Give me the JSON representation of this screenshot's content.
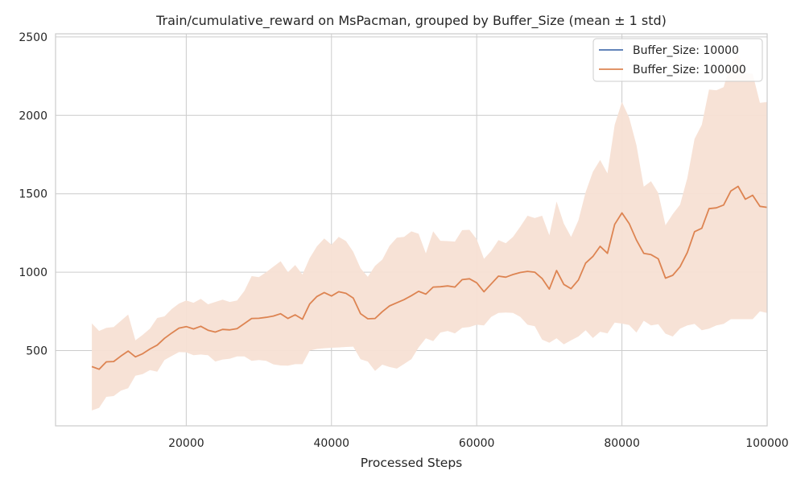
{
  "chart_data": {
    "type": "line",
    "title": "Train/cumulative_reward on MsPacman, grouped by Buffer_Size (mean ± 1 std)",
    "xlabel": "Processed Steps",
    "ylabel": "",
    "xlim": [
      2000,
      100000
    ],
    "ylim": [
      20,
      2520
    ],
    "xticks": [
      20000,
      40000,
      60000,
      80000,
      100000
    ],
    "yticks": [
      500,
      1000,
      1500,
      2000,
      2500
    ],
    "xtick_labels": [
      "20000",
      "40000",
      "60000",
      "80000",
      "100000"
    ],
    "ytick_labels": [
      "500",
      "1000",
      "1500",
      "2000",
      "2500"
    ],
    "grid": true,
    "legend_position": "top-right",
    "series": [
      {
        "name": "Buffer_Size: 10000",
        "color": "#4c72b0",
        "x": [],
        "mean": [],
        "lower": [],
        "upper": []
      },
      {
        "name": "Buffer_Size: 100000",
        "color": "#dd8452",
        "band_color": "#f7e0d4",
        "x": [
          7000,
          8000,
          9000,
          10000,
          11000,
          12000,
          13000,
          14000,
          15000,
          16000,
          17000,
          18000,
          19000,
          20000,
          21000,
          22000,
          23000,
          24000,
          25000,
          26000,
          27000,
          28000,
          29000,
          30000,
          31000,
          32000,
          33000,
          34000,
          35000,
          36000,
          37000,
          38000,
          39000,
          40000,
          41000,
          42000,
          43000,
          44000,
          45000,
          46000,
          47000,
          48000,
          49000,
          50000,
          51000,
          52000,
          53000,
          54000,
          55000,
          56000,
          57000,
          58000,
          59000,
          60000,
          61000,
          62000,
          63000,
          64000,
          65000,
          66000,
          67000,
          68000,
          69000,
          70000,
          71000,
          72000,
          73000,
          74000,
          75000,
          76000,
          77000,
          78000,
          79000,
          80000,
          81000,
          82000,
          83000,
          84000,
          85000,
          86000,
          87000,
          88000,
          89000,
          90000,
          91000,
          92000,
          93000,
          94000,
          95000,
          96000,
          97000,
          98000,
          99000,
          100000
        ],
        "mean": [
          398,
          381,
          428,
          430,
          465,
          497,
          460,
          480,
          510,
          535,
          578,
          612,
          643,
          653,
          638,
          655,
          630,
          618,
          635,
          632,
          640,
          672,
          705,
          706,
          712,
          720,
          735,
          705,
          728,
          700,
          797,
          845,
          870,
          848,
          875,
          865,
          835,
          735,
          703,
          705,
          748,
          785,
          805,
          825,
          850,
          878,
          860,
          905,
          907,
          912,
          905,
          952,
          958,
          932,
          875,
          925,
          975,
          968,
          985,
          998,
          1005,
          1000,
          960,
          892,
          1010,
          922,
          895,
          950,
          1058,
          1100,
          1165,
          1120,
          1305,
          1378,
          1310,
          1205,
          1120,
          1112,
          1085,
          962,
          980,
          1035,
          1125,
          1258,
          1280,
          1405,
          1410,
          1428,
          1518,
          1547,
          1465,
          1490,
          1420,
          1413
        ],
        "lower": [
          118,
          135,
          205,
          210,
          245,
          260,
          340,
          350,
          375,
          365,
          440,
          465,
          490,
          488,
          470,
          475,
          470,
          430,
          443,
          448,
          463,
          463,
          435,
          440,
          435,
          412,
          405,
          404,
          413,
          413,
          500,
          510,
          515,
          518,
          520,
          523,
          525,
          445,
          430,
          370,
          410,
          395,
          385,
          415,
          445,
          520,
          578,
          560,
          615,
          625,
          610,
          645,
          650,
          665,
          660,
          715,
          740,
          743,
          740,
          715,
          665,
          655,
          570,
          550,
          578,
          540,
          565,
          590,
          630,
          580,
          620,
          610,
          678,
          672,
          663,
          615,
          690,
          660,
          668,
          608,
          590,
          640,
          660,
          670,
          630,
          640,
          660,
          670,
          700,
          700,
          700,
          700,
          750,
          740
        ],
        "upper": [
          673,
          625,
          645,
          650,
          690,
          730,
          565,
          600,
          640,
          708,
          718,
          765,
          800,
          820,
          805,
          830,
          795,
          810,
          825,
          810,
          820,
          880,
          975,
          968,
          1000,
          1035,
          1070,
          1000,
          1045,
          985,
          1090,
          1165,
          1215,
          1175,
          1225,
          1198,
          1130,
          1025,
          970,
          1040,
          1080,
          1168,
          1220,
          1225,
          1260,
          1245,
          1120,
          1260,
          1200,
          1198,
          1195,
          1268,
          1270,
          1210,
          1085,
          1135,
          1205,
          1185,
          1225,
          1290,
          1360,
          1345,
          1360,
          1235,
          1450,
          1310,
          1225,
          1330,
          1510,
          1640,
          1715,
          1630,
          1940,
          2085,
          1985,
          1810,
          1545,
          1580,
          1505,
          1300,
          1370,
          1430,
          1600,
          1850,
          1940,
          2165,
          2160,
          2180,
          2335,
          2390,
          2270,
          2265,
          2080,
          2085
        ]
      }
    ]
  }
}
